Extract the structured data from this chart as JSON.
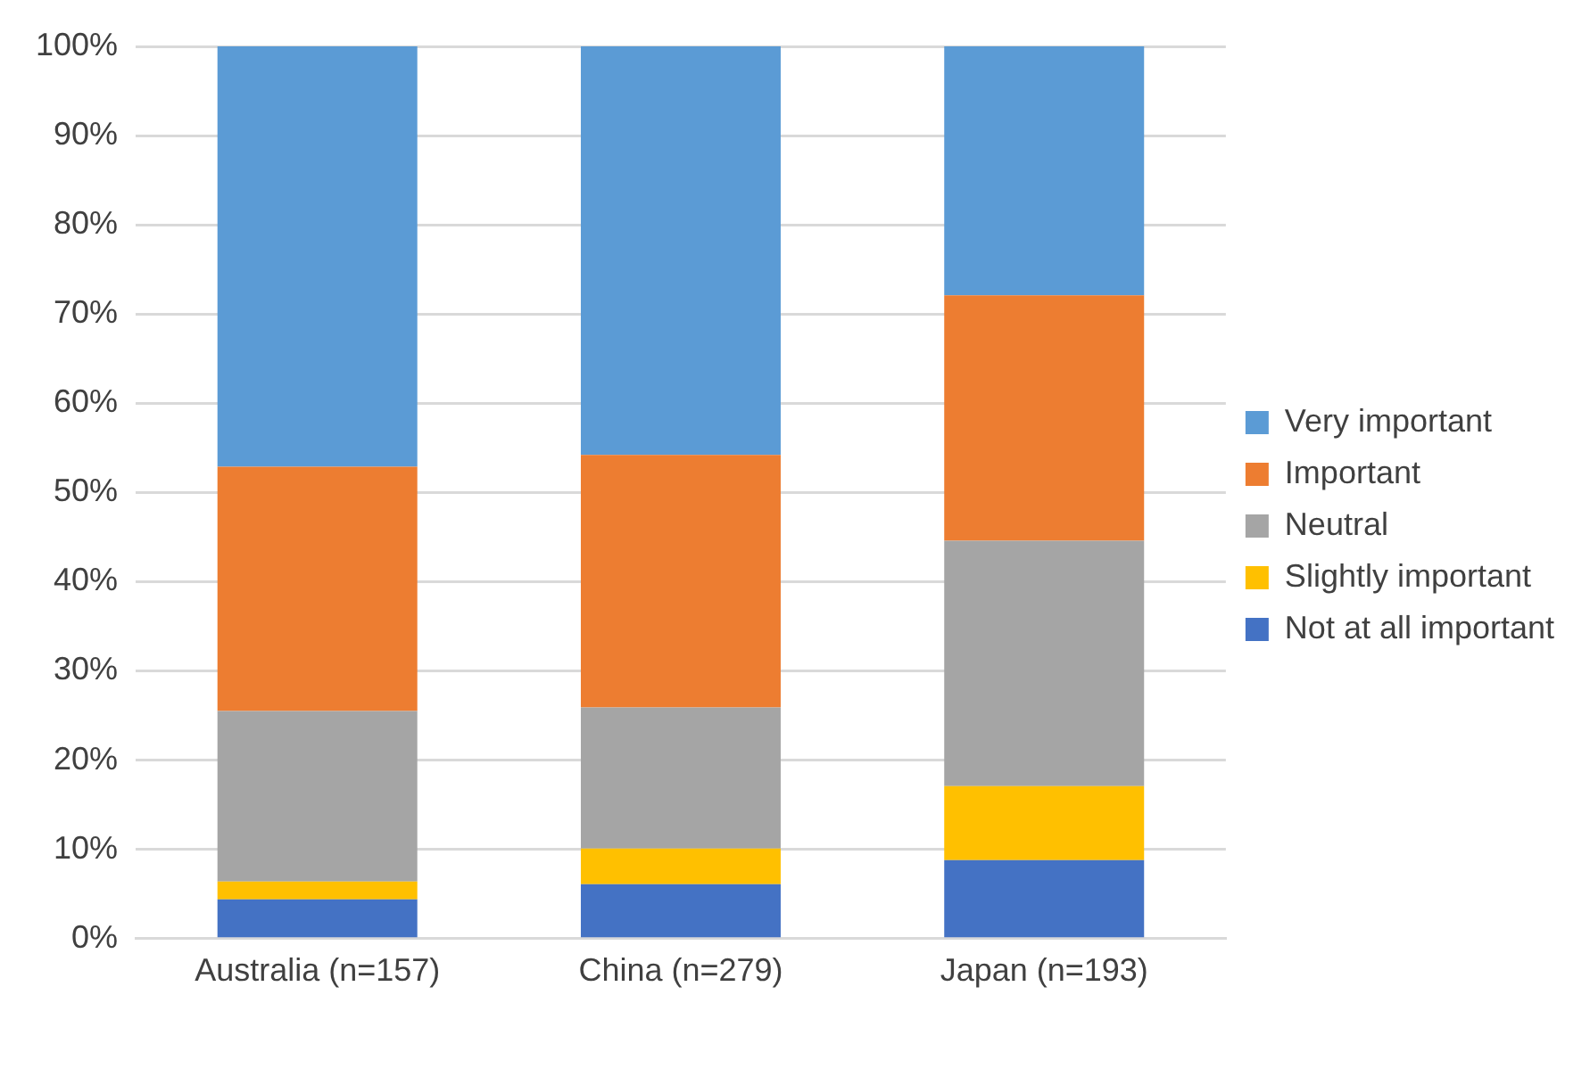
{
  "chart_data": {
    "type": "bar",
    "stacked": true,
    "categories": [
      "Australia (n=157)",
      "China (n=279)",
      "Japan (n=193)"
    ],
    "series": [
      {
        "name": "Not at all important",
        "color": "#4472c4",
        "values": [
          4.4,
          6.1,
          8.8
        ]
      },
      {
        "name": "Slightly important",
        "color": "#ffc000",
        "values": [
          2.0,
          4.0,
          8.3
        ]
      },
      {
        "name": "Neutral",
        "color": "#a5a5a5",
        "values": [
          19.1,
          15.8,
          27.5
        ]
      },
      {
        "name": "Important",
        "color": "#ed7d31",
        "values": [
          27.4,
          28.3,
          27.5
        ]
      },
      {
        "name": "Very important",
        "color": "#5b9bd5",
        "values": [
          47.1,
          45.8,
          27.9
        ]
      }
    ],
    "ylim": [
      0,
      100
    ],
    "yticks": [
      {
        "value": 0,
        "label": "0%"
      },
      {
        "value": 10,
        "label": "10%"
      },
      {
        "value": 20,
        "label": "20%"
      },
      {
        "value": 30,
        "label": "30%"
      },
      {
        "value": 40,
        "label": "40%"
      },
      {
        "value": 50,
        "label": "50%"
      },
      {
        "value": 60,
        "label": "60%"
      },
      {
        "value": 70,
        "label": "70%"
      },
      {
        "value": 80,
        "label": "80%"
      },
      {
        "value": 90,
        "label": "90%"
      },
      {
        "value": 100,
        "label": "100%"
      }
    ],
    "grid": "y",
    "legend": "right"
  }
}
